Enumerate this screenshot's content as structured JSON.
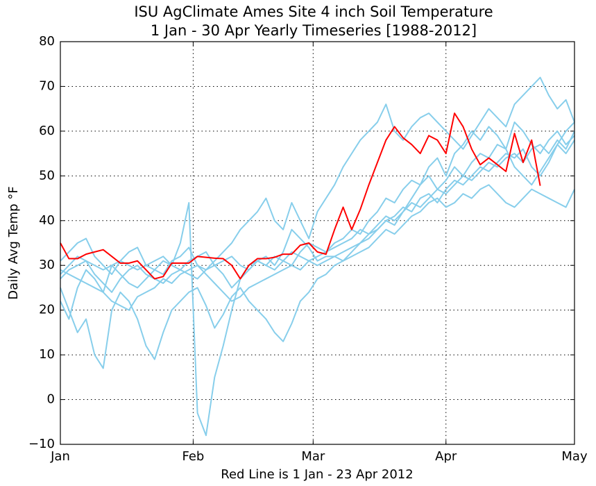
{
  "chart_data": {
    "type": "line",
    "title": "ISU AgClimate Ames Site 4 inch Soil Temperature",
    "subtitle": "1 Jan - 30 Apr Yearly Timeseries [1988-2012]",
    "y_label": "Daily Avg Temp °F",
    "x_label": "Red Line is 1 Jan - 23 Apr 2012",
    "xlim": [
      1,
      121
    ],
    "xticks": [
      {
        "value": 1,
        "label": "Jan"
      },
      {
        "value": 32,
        "label": "Feb"
      },
      {
        "value": 60,
        "label": "Mar"
      },
      {
        "value": 91,
        "label": "Apr"
      },
      {
        "value": 121,
        "label": "May"
      }
    ],
    "ylim": [
      -10,
      80
    ],
    "yticks": [
      {
        "value": -10,
        "label": "−10"
      },
      0,
      10,
      20,
      30,
      40,
      50,
      60,
      70,
      80
    ],
    "grid": true,
    "x": [
      1,
      3,
      5,
      7,
      9,
      11,
      13,
      15,
      17,
      19,
      21,
      23,
      25,
      27,
      29,
      31,
      33,
      35,
      37,
      39,
      41,
      43,
      45,
      47,
      49,
      51,
      53,
      55,
      57,
      59,
      61,
      63,
      65,
      67,
      69,
      71,
      73,
      75,
      77,
      79,
      81,
      83,
      85,
      87,
      89,
      91,
      93,
      95,
      97,
      99,
      101,
      103,
      105,
      107,
      109,
      111,
      113,
      115,
      117,
      119,
      121
    ],
    "series": [
      {
        "color": "#87ceeb",
        "values": [
          22,
          18,
          25,
          29,
          27,
          24,
          30,
          28,
          26,
          25,
          27,
          29,
          31,
          30,
          35,
          44,
          -3,
          -8,
          5,
          12,
          20,
          27,
          29,
          31,
          30,
          29,
          31,
          30,
          33,
          35,
          34,
          33,
          35,
          36,
          38,
          37,
          40,
          42,
          45,
          44,
          47,
          49,
          48,
          52,
          54,
          50,
          55,
          57,
          60,
          58,
          61,
          59,
          56,
          62,
          60,
          57,
          55,
          58,
          60,
          57,
          59
        ]
      },
      {
        "color": "#87ceeb",
        "values": [
          27,
          29,
          30,
          31,
          28,
          26,
          24,
          27,
          29,
          30,
          28,
          27,
          26,
          28,
          29,
          28,
          27,
          29,
          30,
          31,
          32,
          30,
          29,
          31,
          30,
          32,
          31,
          33,
          32,
          31,
          32,
          33,
          34,
          35,
          36,
          38,
          37,
          39,
          41,
          40,
          42,
          44,
          43,
          45,
          47,
          46,
          48,
          50,
          49,
          51,
          53,
          52,
          54,
          55,
          53,
          56,
          57,
          55,
          58,
          56,
          60
        ]
      },
      {
        "color": "#87ceeb",
        "values": [
          25,
          20,
          15,
          18,
          10,
          7,
          20,
          24,
          22,
          18,
          12,
          9,
          15,
          20,
          22,
          24,
          25,
          21,
          16,
          19,
          23,
          25,
          22,
          20,
          18,
          15,
          13,
          17,
          22,
          24,
          27,
          28,
          30,
          31,
          33,
          35,
          37,
          38,
          40,
          41,
          43,
          42,
          45,
          46,
          44,
          47,
          49,
          48,
          50,
          52,
          51,
          53,
          55,
          54,
          56,
          52,
          50,
          53,
          57,
          55,
          58
        ]
      },
      {
        "color": "#87ceeb",
        "values": [
          31,
          33,
          35,
          36,
          32,
          30,
          28,
          31,
          33,
          34,
          30,
          29,
          28,
          31,
          32,
          34,
          30,
          29,
          31,
          33,
          35,
          38,
          40,
          42,
          45,
          40,
          38,
          44,
          40,
          36,
          42,
          45,
          48,
          52,
          55,
          58,
          60,
          62,
          66,
          60,
          58,
          61,
          63,
          64,
          62,
          60,
          58,
          56,
          59,
          62,
          65,
          63,
          61,
          66,
          68,
          70,
          72,
          68,
          65,
          67,
          62
        ]
      },
      {
        "color": "#87ceeb",
        "values": [
          29,
          28,
          27,
          26,
          25,
          24,
          22,
          21,
          20,
          23,
          24,
          25,
          27,
          26,
          28,
          29,
          30,
          28,
          26,
          24,
          22,
          23,
          25,
          26,
          27,
          28,
          29,
          30,
          29,
          31,
          30,
          31,
          32,
          31,
          32,
          33,
          34,
          36,
          38,
          37,
          39,
          41,
          42,
          44,
          45,
          43,
          44,
          46,
          45,
          47,
          48,
          46,
          44,
          43,
          45,
          47,
          46,
          45,
          44,
          43,
          47
        ]
      },
      {
        "color": "#87ceeb",
        "values": [
          28,
          30,
          32,
          31,
          30,
          29,
          30,
          31,
          30,
          29,
          30,
          31,
          32,
          30,
          29,
          31,
          32,
          33,
          30,
          28,
          25,
          27,
          30,
          31,
          32,
          30,
          33,
          38,
          36,
          34,
          31,
          32,
          32,
          33,
          34,
          35,
          36,
          38,
          40,
          39,
          42,
          45,
          48,
          50,
          47,
          49,
          52,
          50,
          53,
          55,
          54,
          57,
          56,
          52,
          50,
          48,
          51,
          54,
          57,
          60,
          62
        ]
      },
      {
        "color": "#ff0000",
        "values": [
          35,
          31.5,
          31.5,
          32.5,
          33,
          33.5,
          32,
          30.5,
          30.5,
          31,
          29,
          27,
          27.5,
          30.5,
          30.5,
          30.5,
          32,
          31.8,
          31.6,
          31.5,
          30,
          27,
          30,
          31.5,
          31.5,
          31.8,
          32.5,
          32.5,
          34.5,
          35,
          33,
          32.5,
          38,
          43,
          38,
          42.5,
          48,
          53,
          58,
          61,
          58.5,
          57,
          55,
          59,
          58,
          55,
          64,
          61,
          56,
          52.5,
          54,
          52.5,
          51,
          59.5,
          53,
          58,
          47.8,
          null,
          null,
          null,
          null
        ]
      }
    ]
  }
}
